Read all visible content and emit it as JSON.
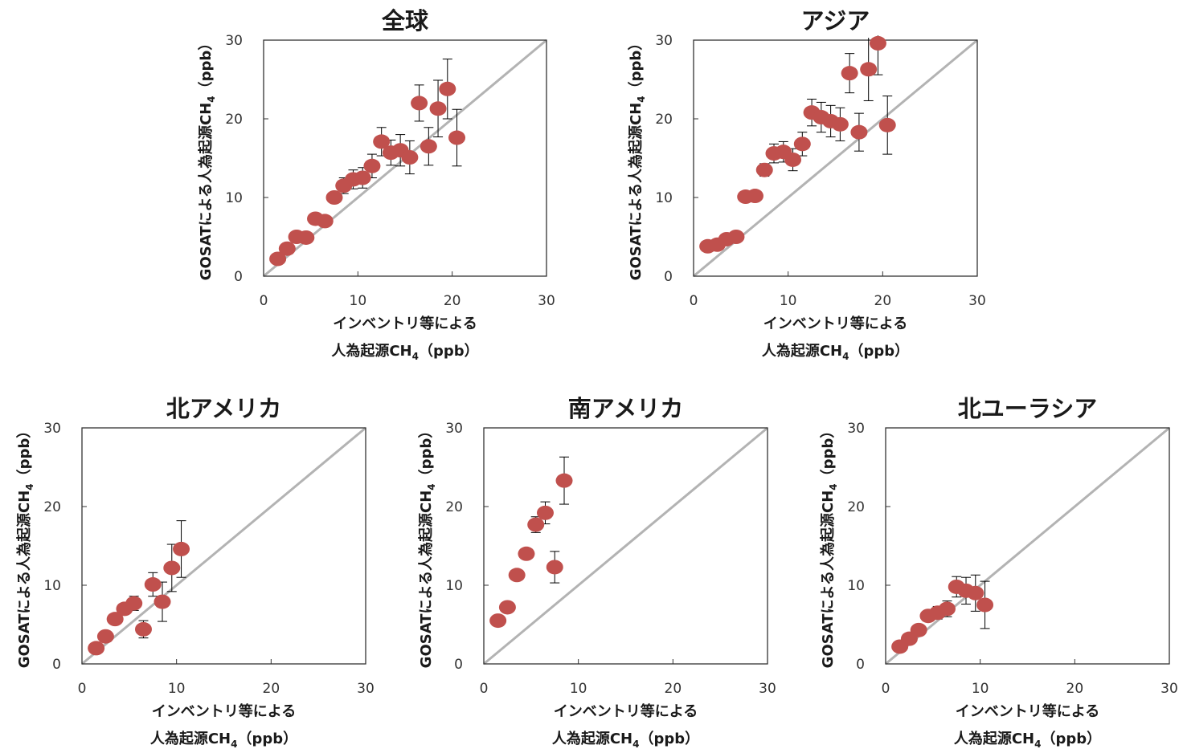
{
  "colors": {
    "marker": "#c0504d",
    "diagonal": "#b3b3b3",
    "frame": "#333333",
    "errorbar": "#000000"
  },
  "chart_data": [
    {
      "type": "scatter",
      "title": "全球",
      "xlabel": {
        "line1": "インベントリ等による",
        "line2_main": "人為起源CH",
        "line2_sub": "4",
        "line2_unit": "（ppb）"
      },
      "ylabel": {
        "main": "GOSATによる人為起源CH",
        "sub": "4",
        "unit": "（ppb）"
      },
      "xlim": [
        0,
        30
      ],
      "ylim": [
        0,
        30
      ],
      "xticks": [
        "0",
        "10",
        "20",
        "30"
      ],
      "yticks": [
        "0",
        "10",
        "20",
        "30"
      ],
      "reference_line": "y = x",
      "points": [
        {
          "x": 1.5,
          "y": 2.2,
          "err": 0.3
        },
        {
          "x": 2.5,
          "y": 3.5,
          "err": 0.3
        },
        {
          "x": 3.5,
          "y": 5.0,
          "err": 0.4
        },
        {
          "x": 4.5,
          "y": 4.9,
          "err": 0.4
        },
        {
          "x": 5.5,
          "y": 7.3,
          "err": 0.5
        },
        {
          "x": 6.5,
          "y": 7.0,
          "err": 0.5
        },
        {
          "x": 7.5,
          "y": 10.0,
          "err": 0.7
        },
        {
          "x": 8.5,
          "y": 11.5,
          "err": 1.0
        },
        {
          "x": 9.5,
          "y": 12.3,
          "err": 1.2
        },
        {
          "x": 10.5,
          "y": 12.5,
          "err": 1.3
        },
        {
          "x": 11.5,
          "y": 14.0,
          "err": 1.5
        },
        {
          "x": 12.5,
          "y": 17.1,
          "err": 1.8
        },
        {
          "x": 13.5,
          "y": 15.7,
          "err": 1.6
        },
        {
          "x": 14.5,
          "y": 16.0,
          "err": 2.0
        },
        {
          "x": 15.5,
          "y": 15.1,
          "err": 2.1
        },
        {
          "x": 16.5,
          "y": 22.0,
          "err": 2.3
        },
        {
          "x": 17.5,
          "y": 16.5,
          "err": 2.4
        },
        {
          "x": 18.5,
          "y": 21.3,
          "err": 3.6
        },
        {
          "x": 19.5,
          "y": 23.8,
          "err": 3.8
        },
        {
          "x": 20.5,
          "y": 17.6,
          "err": 3.6
        }
      ]
    },
    {
      "type": "scatter",
      "title": "アジア",
      "xlabel": {
        "line1": "インベントリ等による",
        "line2_main": "人為起源CH",
        "line2_sub": "4",
        "line2_unit": "（ppb）"
      },
      "ylabel": {
        "main": "GOSATによる人為起源CH",
        "sub": "4",
        "unit": "（ppb）"
      },
      "xlim": [
        0,
        30
      ],
      "ylim": [
        0,
        30
      ],
      "xticks": [
        "0",
        "10",
        "20",
        "30"
      ],
      "yticks": [
        "0",
        "10",
        "20",
        "30"
      ],
      "reference_line": "y = x",
      "points": [
        {
          "x": 1.5,
          "y": 3.8,
          "err": 0.3
        },
        {
          "x": 2.5,
          "y": 4.0,
          "err": 0.3
        },
        {
          "x": 3.5,
          "y": 4.7,
          "err": 0.3
        },
        {
          "x": 4.5,
          "y": 5.0,
          "err": 0.3
        },
        {
          "x": 5.5,
          "y": 10.1,
          "err": 0.5
        },
        {
          "x": 6.5,
          "y": 10.2,
          "err": 0.5
        },
        {
          "x": 7.5,
          "y": 13.5,
          "err": 0.8
        },
        {
          "x": 8.5,
          "y": 15.6,
          "err": 1.2
        },
        {
          "x": 9.5,
          "y": 15.8,
          "err": 1.3
        },
        {
          "x": 10.5,
          "y": 14.8,
          "err": 1.4
        },
        {
          "x": 11.5,
          "y": 16.8,
          "err": 1.5
        },
        {
          "x": 12.5,
          "y": 20.8,
          "err": 1.7
        },
        {
          "x": 13.5,
          "y": 20.2,
          "err": 1.9
        },
        {
          "x": 14.5,
          "y": 19.7,
          "err": 2.0
        },
        {
          "x": 15.5,
          "y": 19.3,
          "err": 2.1
        },
        {
          "x": 16.5,
          "y": 25.8,
          "err": 2.5
        },
        {
          "x": 17.5,
          "y": 18.3,
          "err": 2.4
        },
        {
          "x": 18.5,
          "y": 26.3,
          "err": 4.0
        },
        {
          "x": 19.5,
          "y": 29.6,
          "err": 4.0
        },
        {
          "x": 20.5,
          "y": 19.2,
          "err": 3.7
        }
      ]
    },
    {
      "type": "scatter",
      "title": "北アメリカ",
      "xlabel": {
        "line1": "インベントリ等による",
        "line2_main": "人為起源CH",
        "line2_sub": "4",
        "line2_unit": "（ppb）"
      },
      "ylabel": {
        "main": "GOSATによる人為起源CH",
        "sub": "4",
        "unit": "（ppb）"
      },
      "xlim": [
        0,
        30
      ],
      "ylim": [
        0,
        30
      ],
      "xticks": [
        "0",
        "10",
        "20",
        "30"
      ],
      "yticks": [
        "0",
        "10",
        "20",
        "30"
      ],
      "reference_line": "y = x",
      "points": [
        {
          "x": 1.5,
          "y": 2.0,
          "err": 0.3
        },
        {
          "x": 2.5,
          "y": 3.5,
          "err": 0.4
        },
        {
          "x": 3.5,
          "y": 5.7,
          "err": 0.5
        },
        {
          "x": 4.5,
          "y": 7.0,
          "err": 0.7
        },
        {
          "x": 5.5,
          "y": 7.7,
          "err": 0.9
        },
        {
          "x": 6.5,
          "y": 4.4,
          "err": 1.1
        },
        {
          "x": 7.5,
          "y": 10.1,
          "err": 1.5
        },
        {
          "x": 8.5,
          "y": 7.9,
          "err": 2.5
        },
        {
          "x": 9.5,
          "y": 12.2,
          "err": 3.0
        },
        {
          "x": 10.5,
          "y": 14.6,
          "err": 3.6
        }
      ]
    },
    {
      "type": "scatter",
      "title": "南アメリカ",
      "xlabel": {
        "line1": "インベントリ等による",
        "line2_main": "人為起源CH",
        "line2_sub": "4",
        "line2_unit": "（ppb）"
      },
      "ylabel": {
        "main": "GOSATによる人為起源CH",
        "sub": "4",
        "unit": "（ppb）"
      },
      "xlim": [
        0,
        30
      ],
      "ylim": [
        0,
        30
      ],
      "xticks": [
        "0",
        "10",
        "20",
        "30"
      ],
      "yticks": [
        "0",
        "10",
        "20",
        "30"
      ],
      "reference_line": "y = x",
      "points": [
        {
          "x": 1.5,
          "y": 5.5,
          "err": 0.3
        },
        {
          "x": 2.5,
          "y": 7.2,
          "err": 0.4
        },
        {
          "x": 3.5,
          "y": 11.3,
          "err": 0.5
        },
        {
          "x": 4.5,
          "y": 14.0,
          "err": 0.7
        },
        {
          "x": 5.5,
          "y": 17.7,
          "err": 1.0
        },
        {
          "x": 6.5,
          "y": 19.2,
          "err": 1.4
        },
        {
          "x": 7.5,
          "y": 12.3,
          "err": 2.0
        },
        {
          "x": 8.5,
          "y": 23.3,
          "err": 3.0
        }
      ]
    },
    {
      "type": "scatter",
      "title": "北ユーラシア",
      "xlabel": {
        "line1": "インベントリ等による",
        "line2_main": "人為起源CH",
        "line2_sub": "4",
        "line2_unit": "（ppb）"
      },
      "ylabel": {
        "main": "GOSATによる人為起源CH",
        "sub": "4",
        "unit": "（ppb）"
      },
      "xlim": [
        0,
        30
      ],
      "ylim": [
        0,
        30
      ],
      "xticks": [
        "0",
        "10",
        "20",
        "30"
      ],
      "yticks": [
        "0",
        "10",
        "20",
        "30"
      ],
      "reference_line": "y = x",
      "points": [
        {
          "x": 1.5,
          "y": 2.2,
          "err": 0.3
        },
        {
          "x": 2.5,
          "y": 3.2,
          "err": 0.3
        },
        {
          "x": 3.5,
          "y": 4.3,
          "err": 0.4
        },
        {
          "x": 4.5,
          "y": 6.1,
          "err": 0.5
        },
        {
          "x": 5.5,
          "y": 6.5,
          "err": 0.8
        },
        {
          "x": 6.5,
          "y": 7.0,
          "err": 1.0
        },
        {
          "x": 7.5,
          "y": 9.8,
          "err": 1.3
        },
        {
          "x": 8.5,
          "y": 9.3,
          "err": 1.7
        },
        {
          "x": 9.5,
          "y": 9.0,
          "err": 2.3
        },
        {
          "x": 10.5,
          "y": 7.5,
          "err": 3.0
        }
      ]
    }
  ]
}
